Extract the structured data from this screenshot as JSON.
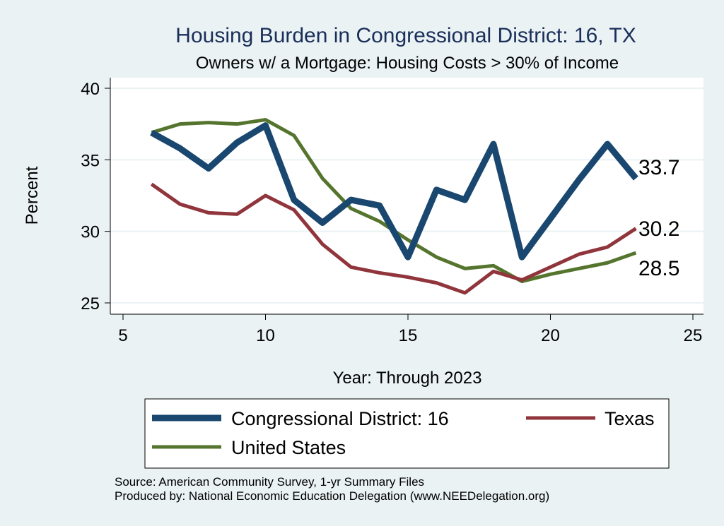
{
  "chart_data": {
    "type": "line",
    "title": "Housing Burden in Congressional District:  16, TX",
    "subtitle": "Owners w/ a Mortgage: Housing Costs > 30% of Income",
    "xlabel": "Year: Through 2023",
    "ylabel": "Percent",
    "xlim": [
      5,
      25
    ],
    "ylim": [
      25,
      40
    ],
    "xticks": [
      5,
      10,
      15,
      20,
      25
    ],
    "yticks": [
      25,
      30,
      35,
      40
    ],
    "grid": true,
    "legend_position": "bottom",
    "series": [
      {
        "name": "Congressional District:  16",
        "color": "#1a476f",
        "x": [
          6,
          7,
          8,
          9,
          10,
          11,
          12,
          13,
          14,
          15,
          16,
          17,
          18,
          19,
          20,
          21,
          22,
          23
        ],
        "values": [
          36.9,
          35.8,
          34.4,
          36.2,
          37.4,
          32.2,
          30.6,
          32.2,
          31.8,
          28.2,
          32.9,
          32.2,
          36.1,
          28.2,
          30.9,
          33.6,
          36.1,
          33.7
        ],
        "end_label": "33.7"
      },
      {
        "name": "Texas",
        "color": "#90353b",
        "x": [
          6,
          7,
          8,
          9,
          10,
          11,
          12,
          13,
          14,
          15,
          16,
          17,
          18,
          19,
          20,
          21,
          22,
          23
        ],
        "values": [
          33.3,
          31.9,
          31.3,
          31.2,
          32.5,
          31.5,
          29.1,
          27.5,
          27.1,
          26.8,
          26.4,
          25.7,
          27.2,
          26.6,
          27.5,
          28.4,
          28.9,
          30.2
        ],
        "end_label": "30.2"
      },
      {
        "name": "United States",
        "color": "#55752f",
        "x": [
          6,
          7,
          8,
          9,
          10,
          11,
          12,
          13,
          14,
          15,
          16,
          17,
          18,
          19,
          20,
          21,
          22,
          23
        ],
        "values": [
          36.9,
          37.5,
          37.6,
          37.5,
          37.8,
          36.7,
          33.7,
          31.6,
          30.7,
          29.4,
          28.2,
          27.4,
          27.6,
          26.5,
          27.0,
          27.4,
          27.8,
          28.5
        ],
        "end_label": "28.5"
      }
    ]
  },
  "source_note": "Source: American Community Survey, 1-yr Summary Files",
  "produced_note": "Produced by: National Economic Education Delegation (www.NEEDelegation.org)"
}
